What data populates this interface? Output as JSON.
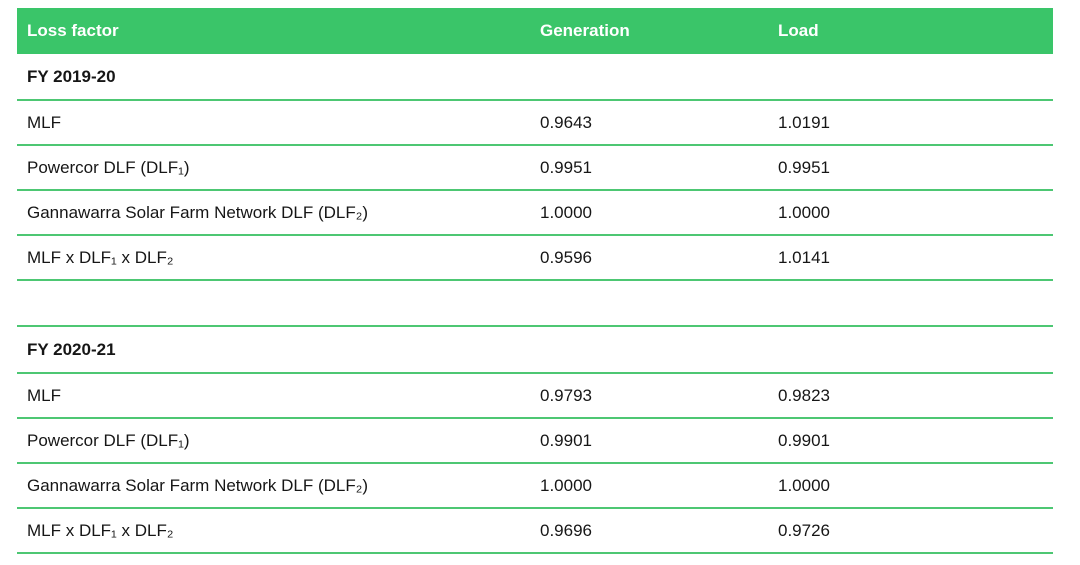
{
  "colors": {
    "header_bg": "#3ac569",
    "divider": "#4dc773",
    "header_text": "#ffffff",
    "body_text": "#161616"
  },
  "table": {
    "columns": [
      "Loss factor",
      "Generation",
      "Load"
    ],
    "sections": [
      {
        "title": "FY 2019-20",
        "rows": [
          {
            "label": "MLF",
            "generation": "0.9643",
            "load": "1.0191"
          },
          {
            "label": "Powercor DLF (DLF₁)",
            "generation": "0.9951",
            "load": "0.9951"
          },
          {
            "label": "Gannawarra Solar Farm Network DLF (DLF₂)",
            "generation": "1.0000",
            "load": "1.0000"
          },
          {
            "label": "MLF x DLF₁ x DLF₂",
            "generation": "0.9596",
            "load": "1.0141"
          }
        ]
      },
      {
        "title": "FY 2020-21",
        "rows": [
          {
            "label": "MLF",
            "generation": "0.9793",
            "load": "0.9823"
          },
          {
            "label": "Powercor DLF (DLF₁)",
            "generation": "0.9901",
            "load": "0.9901"
          },
          {
            "label": "Gannawarra Solar Farm Network DLF (DLF₂)",
            "generation": "1.0000",
            "load": "1.0000"
          },
          {
            "label": "MLF x DLF₁ x DLF₂",
            "generation": "0.9696",
            "load": "0.9726"
          }
        ]
      }
    ]
  }
}
